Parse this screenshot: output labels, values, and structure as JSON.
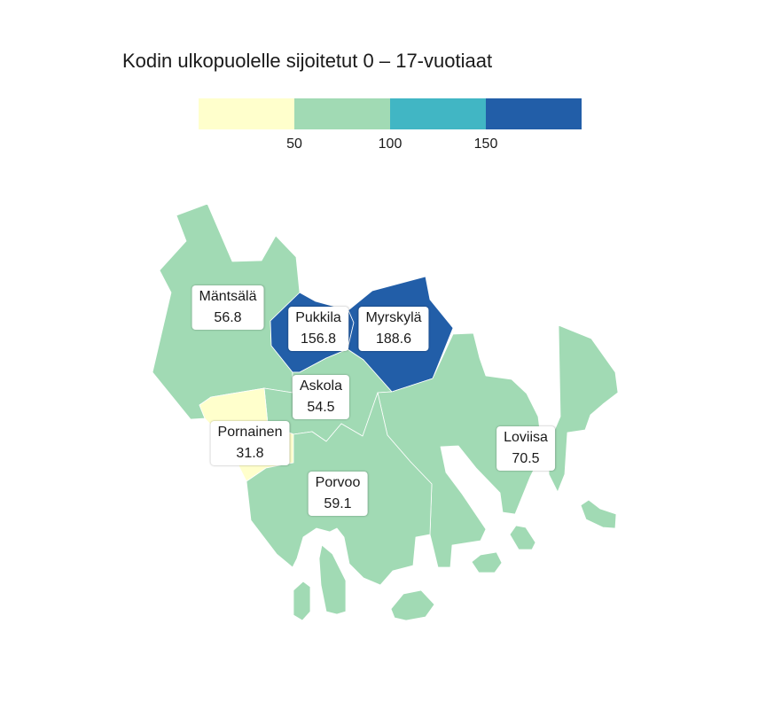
{
  "title": "Kodin ulkopuolelle sijoitetut 0 – 17-vuotiaat",
  "legend": {
    "bins": [
      {
        "color": "#ffffcc"
      },
      {
        "color": "#a1dab4"
      },
      {
        "color": "#41b6c4"
      },
      {
        "color": "#225ea8"
      }
    ],
    "ticks": [
      "50",
      "100",
      "150"
    ]
  },
  "regions": [
    {
      "name": "Mäntsälä",
      "value": "56.8",
      "color": "#a1dab4"
    },
    {
      "name": "Pukkila",
      "value": "156.8",
      "color": "#225ea8"
    },
    {
      "name": "Myrskylä",
      "value": "188.6",
      "color": "#225ea8"
    },
    {
      "name": "Askola",
      "value": "54.5",
      "color": "#a1dab4"
    },
    {
      "name": "Pornainen",
      "value": "31.8",
      "color": "#ffffcc"
    },
    {
      "name": "Loviisa",
      "value": "70.5",
      "color": "#a1dab4"
    },
    {
      "name": "Porvoo",
      "value": "59.1",
      "color": "#a1dab4"
    }
  ]
}
